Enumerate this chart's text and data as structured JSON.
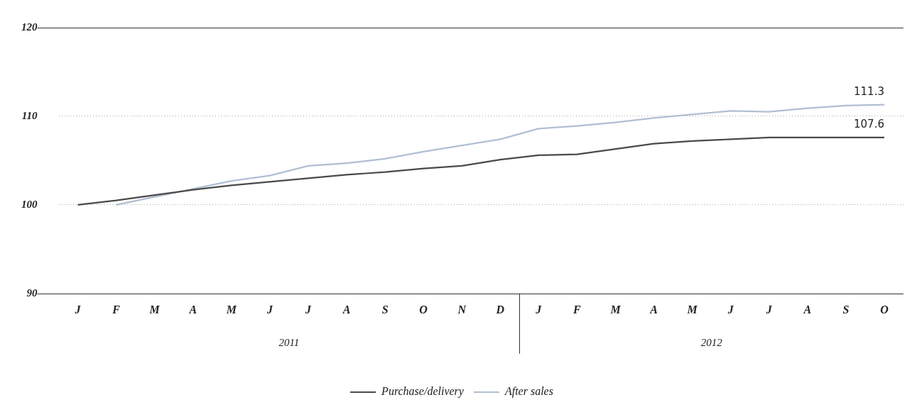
{
  "chart_data": {
    "type": "line",
    "categories": [
      "J",
      "F",
      "M",
      "A",
      "M",
      "J",
      "J",
      "A",
      "S",
      "O",
      "N",
      "D",
      "J",
      "F",
      "M",
      "A",
      "M",
      "J",
      "J",
      "A",
      "S",
      "O"
    ],
    "series": [
      {
        "name": "Purchase/delivery",
        "color": "#4a4a4a",
        "values": [
          100,
          100.5,
          101.1,
          101.7,
          102.2,
          102.6,
          103.0,
          103.4,
          103.7,
          104.1,
          104.4,
          105.1,
          105.6,
          105.7,
          106.3,
          106.9,
          107.2,
          107.4,
          107.6,
          107.6,
          107.6,
          107.6
        ],
        "value_labels": [
          null,
          null,
          null,
          null,
          null,
          null,
          null,
          null,
          null,
          null,
          null,
          null,
          null,
          null,
          null,
          null,
          null,
          null,
          null,
          null,
          null,
          "107.6"
        ]
      },
      {
        "name": "After sales",
        "color": "#b0bfd2",
        "values": [
          null,
          100,
          100.9,
          101.8,
          102.7,
          103.3,
          104.4,
          104.7,
          105.2,
          106.0,
          106.7,
          107.4,
          108.6,
          108.9,
          109.3,
          109.8,
          110.2,
          110.6,
          110.5,
          110.9,
          111.2,
          111.3
        ],
        "value_labels": [
          null,
          null,
          null,
          null,
          null,
          null,
          null,
          null,
          null,
          null,
          null,
          null,
          null,
          null,
          null,
          null,
          null,
          null,
          null,
          null,
          null,
          "111.3"
        ]
      }
    ],
    "ylim": [
      90,
      120
    ],
    "yticks": [
      90,
      100,
      110,
      120
    ],
    "grid": "y",
    "legend": "bottom",
    "marker": "none",
    "line_style": "solid",
    "annotations": [
      "2011",
      "2012"
    ]
  }
}
